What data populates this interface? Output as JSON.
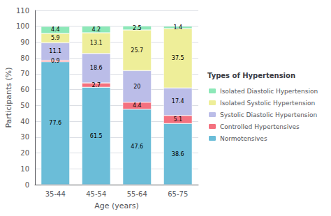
{
  "chart_data": {
    "type": "bar",
    "stacked": true,
    "data_labels": true,
    "grid": true,
    "xlabel": "Age (years)",
    "ylabel": "Participants (%)",
    "legend_title": "Types of Hypertension",
    "legend": "right",
    "categories": [
      "35-44",
      "45-54",
      "55-64",
      "65-75"
    ],
    "series": [
      {
        "name": "Normotensives",
        "color": "#6bbdd8",
        "values": [
          77.6,
          61.5,
          47.6,
          38.6
        ]
      },
      {
        "name": "Controlled Hypertensives",
        "color": "#f4717f",
        "values": [
          0.9,
          2.7,
          4.4,
          5.1
        ]
      },
      {
        "name": "Systolic Diastolic Hypertension",
        "color": "#bbbde8",
        "values": [
          11.1,
          18.6,
          20.0,
          17.4
        ]
      },
      {
        "name": "Isolated Systolic Hypertension",
        "color": "#eeee99",
        "values": [
          5.9,
          13.1,
          25.7,
          37.5
        ]
      },
      {
        "name": "Isolated Diastolic Hypertension",
        "color": "#8de8b8",
        "values": [
          4.4,
          4.2,
          2.5,
          1.4
        ]
      }
    ],
    "ylim": [
      0,
      110
    ],
    "yticks": [
      0,
      10,
      20,
      30,
      40,
      50,
      60,
      70,
      80,
      90,
      100,
      110
    ]
  }
}
